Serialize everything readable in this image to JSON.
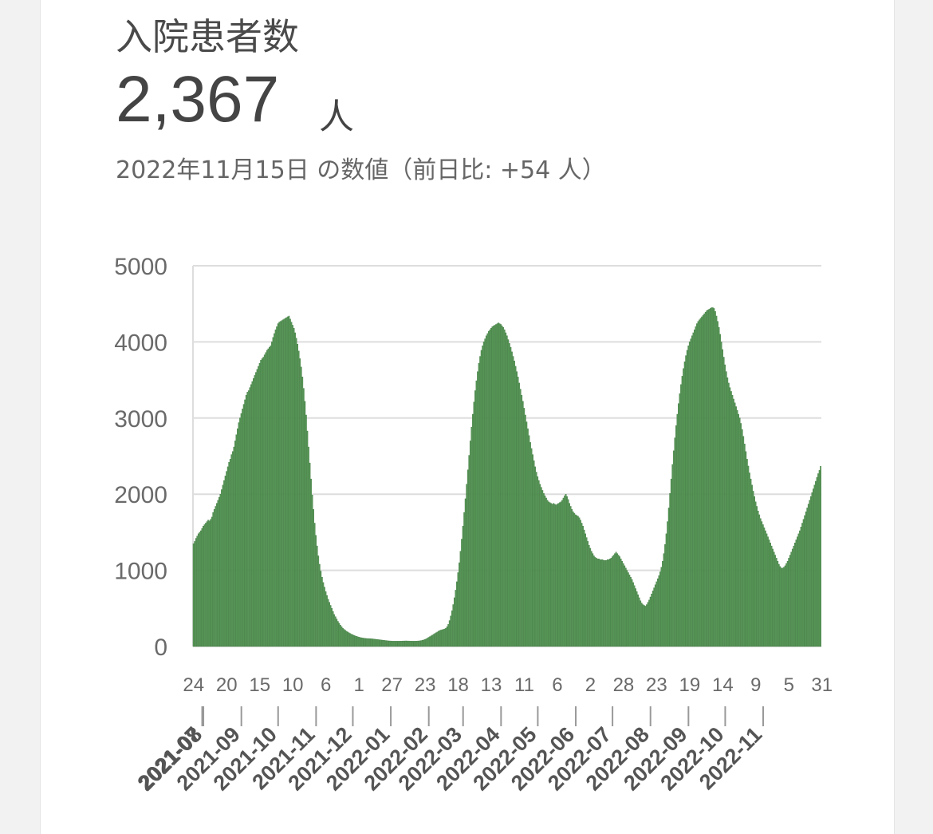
{
  "header": {
    "title": "入院患者数",
    "value": "2,367",
    "unit": "人",
    "date_note": "2022年11月15日 の数値（前日比: +54 人）"
  },
  "colors": {
    "bar": "#5a9a5a",
    "bar_edge": "#3f7a3f",
    "grid": "#dddddd",
    "axis_text": "#6a6a6a"
  },
  "chart_data": {
    "type": "bar",
    "title": "",
    "xlabel": "",
    "ylabel": "",
    "ylim": [
      0,
      5000
    ],
    "yticks": [
      "0",
      "1000",
      "2000",
      "3000",
      "4000",
      "5000"
    ],
    "grid": true,
    "x_start": "2021-07-24",
    "x_end": "2022-11-15",
    "day_tick_labels": [
      "24",
      "20",
      "15",
      "10",
      "6",
      "1",
      "27",
      "23",
      "18",
      "13",
      "11",
      "6",
      "2",
      "28",
      "23",
      "19",
      "14",
      "9",
      "5",
      "31"
    ],
    "month_labels": [
      "2021-07",
      "2021-08",
      "2021-09",
      "2021-10",
      "2021-11",
      "2021-12",
      "2022-01",
      "2022-02",
      "2022-03",
      "2022-04",
      "2022-05",
      "2022-06",
      "2022-07",
      "2022-08",
      "2022-09",
      "2022-10",
      "2022-11"
    ],
    "month_starts": [
      "2021-07-01",
      "2021-08-01",
      "2021-09-01",
      "2021-10-01",
      "2021-11-01",
      "2021-12-01",
      "2022-01-01",
      "2022-02-01",
      "2022-03-01",
      "2022-04-01",
      "2022-05-01",
      "2022-06-01",
      "2022-07-01",
      "2022-08-01",
      "2022-09-01",
      "2022-10-01",
      "2022-11-01"
    ],
    "series": [
      {
        "values": [
          1350,
          1380,
          1420,
          1450,
          1480,
          1500,
          1520,
          1550,
          1580,
          1600,
          1620,
          1640,
          1660,
          1650,
          1670,
          1700,
          1760,
          1800,
          1840,
          1880,
          1920,
          1960,
          2000,
          2060,
          2120,
          2180,
          2240,
          2300,
          2360,
          2420,
          2460,
          2520,
          2560,
          2620,
          2700,
          2780,
          2860,
          2940,
          3000,
          3060,
          3120,
          3180,
          3240,
          3300,
          3340,
          3360,
          3400,
          3440,
          3480,
          3520,
          3560,
          3600,
          3640,
          3680,
          3720,
          3760,
          3780,
          3800,
          3830,
          3860,
          3890,
          3910,
          3930,
          3950,
          4000,
          4060,
          4110,
          4160,
          4200,
          4240,
          4260,
          4270,
          4280,
          4290,
          4300,
          4310,
          4320,
          4330,
          4340,
          4300,
          4260,
          4220,
          4180,
          4120,
          4050,
          3970,
          3880,
          3780,
          3670,
          3540,
          3390,
          3220,
          3040,
          2830,
          2620,
          2410,
          2200,
          1990,
          1800,
          1620,
          1460,
          1320,
          1190,
          1080,
          990,
          910,
          840,
          780,
          720,
          670,
          620,
          580,
          540,
          500,
          460,
          420,
          390,
          360,
          330,
          305,
          280,
          260,
          240,
          225,
          212,
          200,
          190,
          180,
          170,
          162,
          154,
          147,
          140,
          134,
          128,
          123,
          119,
          115,
          112,
          109,
          107,
          105,
          104,
          103,
          102,
          101,
          100,
          98,
          96,
          94,
          92,
          90,
          88,
          86,
          84,
          82,
          80,
          78,
          76,
          74,
          73,
          72,
          71,
          70,
          70,
          70,
          70,
          70,
          70,
          71,
          71,
          72,
          72,
          73,
          73,
          72,
          72,
          71,
          71,
          70,
          70,
          70,
          71,
          72,
          73,
          75,
          78,
          82,
          87,
          93,
          100,
          110,
          120,
          130,
          140,
          150,
          160,
          170,
          180,
          190,
          200,
          210,
          215,
          220,
          225,
          230,
          240,
          260,
          290,
          340,
          400,
          470,
          550,
          640,
          740,
          850,
          970,
          1100,
          1250,
          1410,
          1580,
          1760,
          1940,
          2130,
          2320,
          2510,
          2700,
          2880,
          3050,
          3210,
          3360,
          3490,
          3610,
          3720,
          3810,
          3890,
          3950,
          4000,
          4040,
          4080,
          4110,
          4140,
          4160,
          4180,
          4200,
          4210,
          4220,
          4230,
          4240,
          4250,
          4240,
          4230,
          4210,
          4190,
          4160,
          4120,
          4080,
          4030,
          3980,
          3930,
          3870,
          3810,
          3750,
          3680,
          3610,
          3540,
          3460,
          3380,
          3300,
          3220,
          3130,
          3040,
          2950,
          2860,
          2770,
          2680,
          2600,
          2520,
          2440,
          2360,
          2290,
          2230,
          2180,
          2130,
          2090,
          2050,
          2010,
          1980,
          1950,
          1920,
          1900,
          1890,
          1880,
          1870,
          1880,
          1870,
          1860,
          1870,
          1880,
          1890,
          1900,
          1920,
          1950,
          1980,
          2000,
          1970,
          1930,
          1880,
          1840,
          1800,
          1770,
          1750,
          1730,
          1720,
          1710,
          1690,
          1660,
          1620,
          1580,
          1530,
          1480,
          1430,
          1380,
          1330,
          1290,
          1250,
          1220,
          1190,
          1170,
          1160,
          1150,
          1150,
          1140,
          1140,
          1140,
          1130,
          1130,
          1130,
          1140,
          1140,
          1150,
          1160,
          1180,
          1200,
          1220,
          1240,
          1220,
          1200,
          1180,
          1150,
          1120,
          1090,
          1060,
          1030,
          1000,
          970,
          940,
          910,
          880,
          840,
          800,
          760,
          720,
          680,
          640,
          600,
          570,
          550,
          540,
          530,
          550,
          580,
          610,
          650,
          690,
          730,
          770,
          810,
          850,
          890,
          930,
          980,
          1040,
          1120,
          1220,
          1340,
          1480,
          1640,
          1820,
          2010,
          2200,
          2390,
          2570,
          2740,
          2900,
          3050,
          3190,
          3320,
          3440,
          3550,
          3650,
          3740,
          3820,
          3890,
          3950,
          4000,
          4040,
          4080,
          4120,
          4160,
          4200,
          4240,
          4270,
          4290,
          4310,
          4330,
          4350,
          4370,
          4390,
          4410,
          4420,
          4430,
          4440,
          4450,
          4450,
          4440,
          4400,
          4340,
          4270,
          4190,
          4100,
          4000,
          3900,
          3800,
          3700,
          3610,
          3530,
          3460,
          3400,
          3350,
          3300,
          3250,
          3200,
          3150,
          3100,
          3050,
          3000,
          2930,
          2850,
          2760,
          2660,
          2560,
          2460,
          2370,
          2280,
          2200,
          2120,
          2040,
          1970,
          1900,
          1840,
          1780,
          1730,
          1680,
          1640,
          1600,
          1560,
          1520,
          1480,
          1440,
          1400,
          1360,
          1320,
          1280,
          1240,
          1200,
          1160,
          1120,
          1080,
          1050,
          1030,
          1030,
          1040,
          1060,
          1090,
          1120,
          1160,
          1200,
          1240,
          1280,
          1320,
          1360,
          1400,
          1440,
          1480,
          1520,
          1570,
          1620,
          1670,
          1720,
          1770,
          1820,
          1870,
          1920,
          1970,
          2020,
          2070,
          2120,
          2170,
          2220,
          2270,
          2313,
          2367
        ]
      }
    ]
  }
}
